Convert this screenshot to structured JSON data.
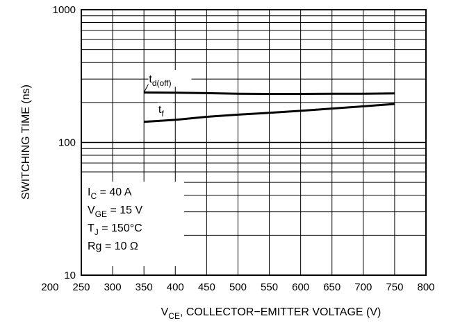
{
  "chart_data": {
    "type": "line",
    "xlabel": {
      "main": "V",
      "sub": "CE",
      "rest": ", COLLECTOR−EMITTER VOLTAGE (V)"
    },
    "ylabel": "SWITCHING TIME (ns)",
    "xlim": [
      250,
      800
    ],
    "ylim": [
      10,
      1000
    ],
    "yscale": "log",
    "grid": true,
    "x_ticks": [
      "200",
      "250",
      "300",
      "350",
      "400",
      "450",
      "500",
      "550",
      "600",
      "650",
      "700",
      "750",
      "800"
    ],
    "y_ticks": [
      "10",
      "100",
      "1000"
    ],
    "series": [
      {
        "name": {
          "main": "t",
          "sub": "d(off)"
        },
        "x": [
          350,
          400,
          450,
          500,
          550,
          600,
          650,
          700,
          750
        ],
        "y": [
          238,
          237,
          235,
          233,
          232,
          232,
          233,
          233,
          234
        ]
      },
      {
        "name": {
          "main": "t",
          "sub": "f"
        },
        "x": [
          350,
          400,
          450,
          500,
          550,
          600,
          650,
          700,
          750
        ],
        "y": [
          143,
          148,
          156,
          162,
          167,
          173,
          180,
          187,
          195
        ]
      }
    ],
    "conditions": [
      {
        "main": "I",
        "sub": "C",
        "rest": " = 40 A"
      },
      {
        "main": "V",
        "sub": "GE",
        "rest": " = 15 V"
      },
      {
        "main": "T",
        "sub": "J",
        "rest": " = 150°C"
      },
      {
        "main": "Rg = 10 Ω",
        "sub": "",
        "rest": ""
      }
    ]
  }
}
